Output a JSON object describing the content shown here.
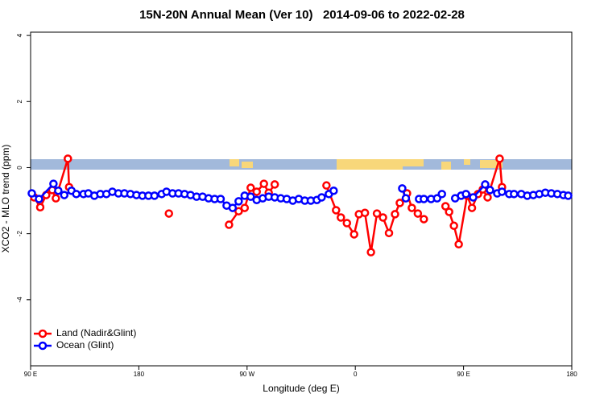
{
  "chart_data": {
    "type": "line",
    "title": "15N-20N Annual Mean (Ver 10)   2014-09-06 to 2022-02-28",
    "xlabel": "Longitude (deg E)",
    "ylabel": "XCO2 - MLO trend (ppm)",
    "xlim": [
      90,
      540
    ],
    "ylim": [
      -6,
      4.1
    ],
    "xticks": [
      {
        "value": 90,
        "label": "90 E"
      },
      180,
      {
        "value": 270,
        "label": "90 W"
      },
      {
        "value": 360,
        "label": "0"
      },
      {
        "value": 450,
        "label": "90 E"
      },
      {
        "value": 540,
        "label": "180"
      }
    ],
    "yticks": [
      -4,
      -2,
      0,
      2,
      4
    ],
    "legend": "bottomleft",
    "series": [
      {
        "name": "Land (Nadir&Glint)",
        "color": "#ff0000",
        "x": [
          93,
          98,
          103,
          108,
          111,
          121,
          122,
          null,
          205,
          null,
          255,
          263,
          268,
          273,
          278,
          284,
          288,
          293,
          null,
          336,
          344,
          348,
          353,
          359,
          363,
          368,
          373,
          378,
          383,
          388,
          393,
          397,
          403,
          407,
          412,
          417,
          null,
          435,
          438,
          442,
          446,
          453,
          457,
          462,
          466,
          470,
          480,
          482
        ],
        "values": [
          -0.9,
          -1.2,
          -0.83,
          -0.68,
          -0.93,
          0.27,
          -0.59,
          null,
          -1.39,
          null,
          -1.73,
          -1.32,
          -1.22,
          -0.61,
          -0.73,
          -0.49,
          -0.76,
          -0.51,
          null,
          -0.54,
          -1.29,
          -1.51,
          -1.68,
          -2.02,
          -1.41,
          -1.37,
          -2.56,
          -1.39,
          -1.51,
          -1.98,
          -1.41,
          -1.07,
          -0.78,
          -1.22,
          -1.39,
          -1.56,
          null,
          -1.17,
          -1.34,
          -1.76,
          -2.32,
          -0.85,
          -1.22,
          -0.8,
          -0.66,
          -0.9,
          0.27,
          -0.59
        ]
      },
      {
        "name": "Ocean (Glint)",
        "color": "#0000ff",
        "x": [
          91,
          97,
          109,
          113,
          118,
          124,
          128,
          134,
          138,
          143,
          148,
          153,
          158,
          163,
          168,
          173,
          178,
          183,
          188,
          193,
          199,
          203,
          208,
          213,
          218,
          223,
          228,
          233,
          238,
          243,
          248,
          253,
          258,
          263,
          268,
          273,
          278,
          283,
          288,
          293,
          298,
          303,
          308,
          313,
          318,
          323,
          328,
          332,
          338,
          342,
          null,
          399,
          402,
          null,
          413,
          417,
          423,
          428,
          432,
          null,
          443,
          448,
          452,
          458,
          468,
          472,
          478,
          482,
          488,
          492,
          498,
          503,
          508,
          513,
          518,
          523,
          528,
          533,
          537
        ],
        "values": [
          -0.78,
          -0.95,
          -0.49,
          -0.7,
          -0.83,
          -0.7,
          -0.8,
          -0.8,
          -0.78,
          -0.85,
          -0.8,
          -0.8,
          -0.73,
          -0.78,
          -0.78,
          -0.8,
          -0.83,
          -0.85,
          -0.85,
          -0.85,
          -0.8,
          -0.73,
          -0.78,
          -0.78,
          -0.8,
          -0.83,
          -0.88,
          -0.88,
          -0.93,
          -0.95,
          -0.95,
          -1.15,
          -1.22,
          -1.02,
          -0.85,
          -0.88,
          -0.98,
          -0.93,
          -0.88,
          -0.9,
          -0.93,
          -0.95,
          -1.0,
          -0.95,
          -1.0,
          -1.0,
          -0.98,
          -0.9,
          -0.8,
          -0.7,
          null,
          -0.63,
          -0.93,
          null,
          -0.95,
          -0.95,
          -0.95,
          -0.93,
          -0.8,
          null,
          -0.93,
          -0.85,
          -0.8,
          -0.9,
          -0.51,
          -0.68,
          -0.78,
          -0.73,
          -0.8,
          -0.8,
          -0.8,
          -0.85,
          -0.83,
          -0.8,
          -0.76,
          -0.78,
          -0.8,
          -0.83,
          -0.85
        ]
      }
    ]
  }
}
